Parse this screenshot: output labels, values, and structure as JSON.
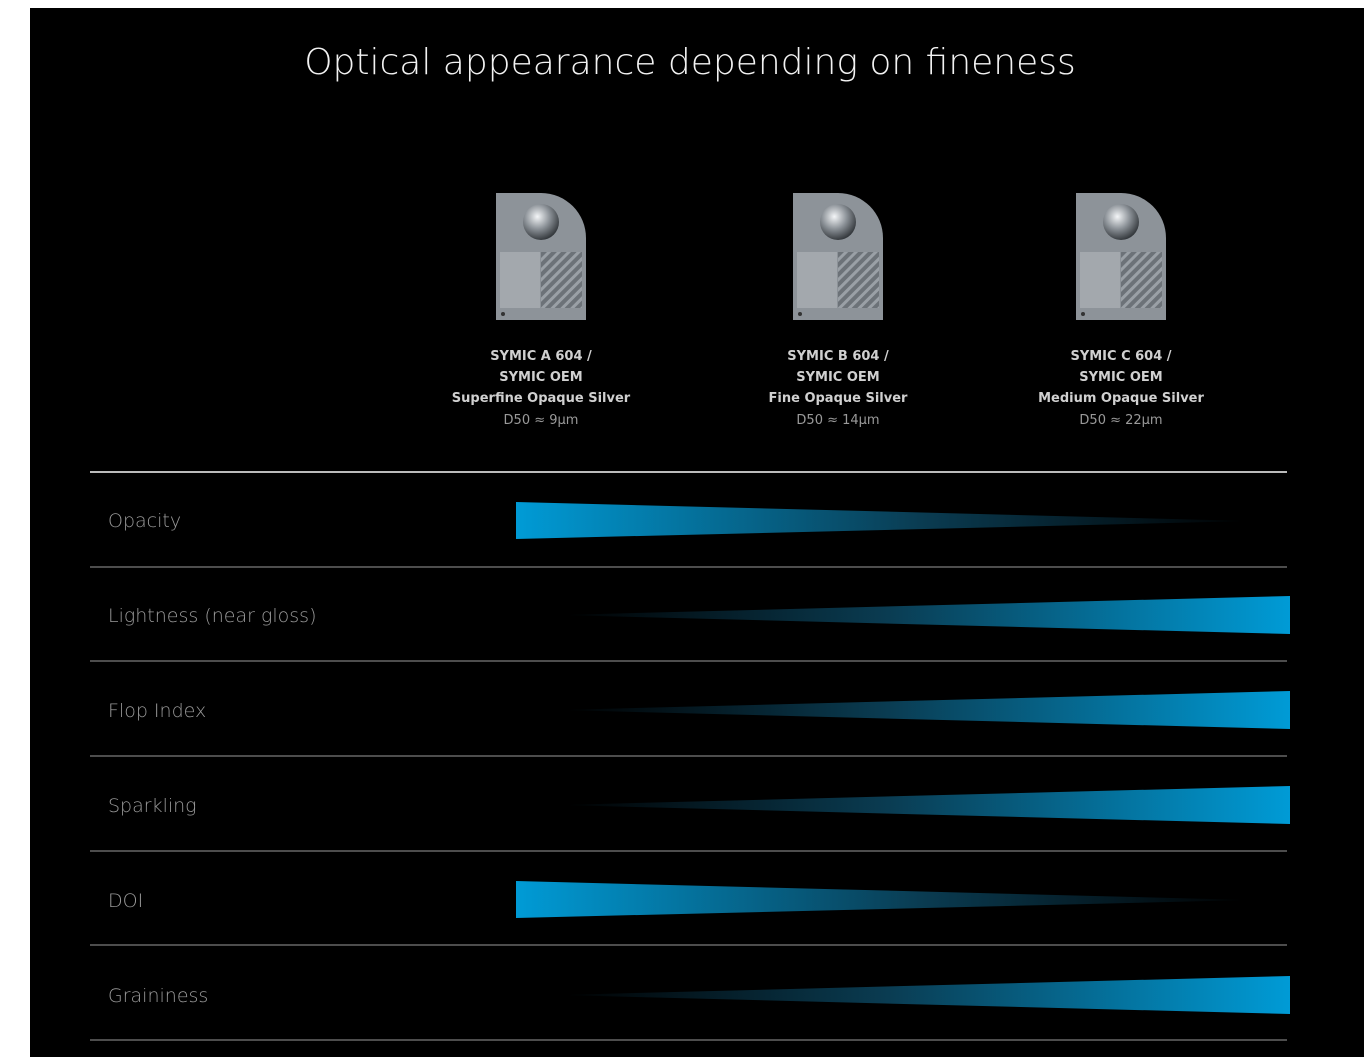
{
  "header": {
    "title": "Optical appearance depending on fineness"
  },
  "products": [
    {
      "line1": "SYMIC A 604 /",
      "line2": "SYMIC OEM",
      "line3": "Superfine Opaque Silver",
      "line4": "D50 ≈ 9µm"
    },
    {
      "line1": "SYMIC B 604 /",
      "line2": "SYMIC OEM",
      "line3": "Fine Opaque Silver",
      "line4": "D50 ≈ 14µm"
    },
    {
      "line1": "SYMIC C 604 /",
      "line2": "SYMIC OEM",
      "line3": "Medium Opaque Silver",
      "line4": "D50 ≈ 22µm"
    }
  ],
  "rows": [
    "Opacity",
    "Lightness (near gloss)",
    "Flop Index",
    "Sparkling",
    "DOI",
    "Graininess"
  ]
}
